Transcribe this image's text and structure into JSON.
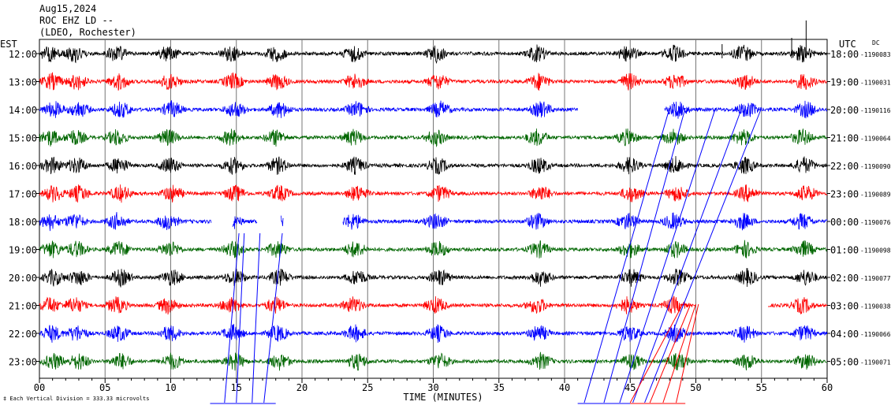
{
  "header": {
    "date": "Aug15,2024",
    "station": "ROC EHZ LD --",
    "network": "(LDEO, Rochester)"
  },
  "left_zone_label": "EST",
  "right_zone_label": "UTC",
  "dc_label": "DC",
  "footer_note": "Each Vertical Division =  333.33 microvolts",
  "chart_data": {
    "type": "line",
    "title": "ROC EHZ LD --",
    "xlabel": "TIME (MINUTES)",
    "x_ticks": [
      "00",
      "05",
      "10",
      "15",
      "20",
      "25",
      "30",
      "35",
      "40",
      "45",
      "50",
      "55",
      "60"
    ],
    "xlim": [
      0,
      60
    ],
    "grid": true,
    "series": [
      {
        "est": "12:00",
        "utc": "18:00",
        "dc": "-1190083",
        "color": "#000000"
      },
      {
        "est": "13:00",
        "utc": "19:00",
        "dc": "-1190031",
        "color": "#ff0000"
      },
      {
        "est": "14:00",
        "utc": "20:00",
        "dc": "-1190116",
        "color": "#0000ff"
      },
      {
        "est": "15:00",
        "utc": "21:00",
        "dc": "-1190064",
        "color": "#006600"
      },
      {
        "est": "16:00",
        "utc": "22:00",
        "dc": "-1190090",
        "color": "#000000"
      },
      {
        "est": "17:00",
        "utc": "23:00",
        "dc": "-1190089",
        "color": "#ff0000"
      },
      {
        "est": "18:00",
        "utc": "00:00",
        "dc": "-1190076",
        "color": "#0000ff"
      },
      {
        "est": "19:00",
        "utc": "01:00",
        "dc": "-1190098",
        "color": "#006600"
      },
      {
        "est": "20:00",
        "utc": "02:00",
        "dc": "-1190077",
        "color": "#000000"
      },
      {
        "est": "21:00",
        "utc": "03:00",
        "dc": "-1190038",
        "color": "#ff0000"
      },
      {
        "est": "22:00",
        "utc": "04:00",
        "dc": "-1190066",
        "color": "#0000ff"
      },
      {
        "est": "23:00",
        "utc": "05:00",
        "dc": "-1190071",
        "color": "#006600"
      }
    ]
  }
}
